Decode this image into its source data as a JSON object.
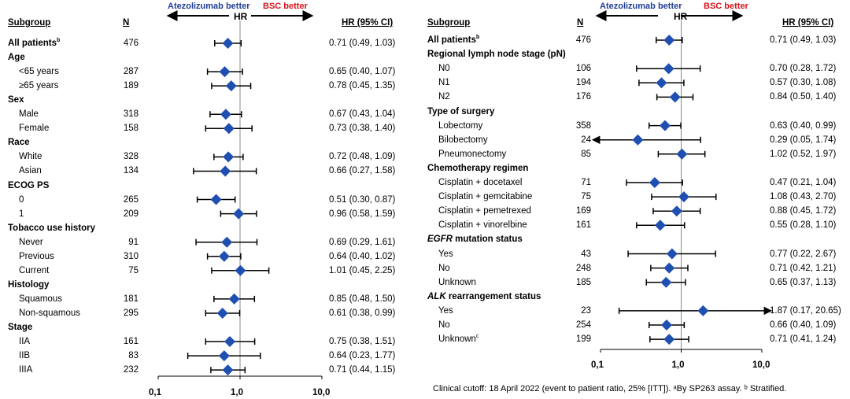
{
  "chart_data": [
    {
      "type": "forest",
      "headers": {
        "subgroup": "Subgroup",
        "n": "N",
        "hr_col": "HR (95% CI)",
        "axis_title": "HR",
        "left_label": "Atezolizumab better",
        "right_label": "BSC better"
      },
      "x_scale": "log",
      "x_ticks": [
        "0,1",
        "1,0",
        "10,0"
      ],
      "xlim": [
        0.1,
        10
      ],
      "reference_line": 1.0,
      "rows": [
        {
          "label": "All patients",
          "sup": "b",
          "section": false,
          "n": "476",
          "hr": 0.71,
          "lo": 0.49,
          "hi": 1.03,
          "ci_text": "0.71 (0.49, 1.03)"
        },
        {
          "label": "Age",
          "section": true
        },
        {
          "label": "<65 years",
          "section": false,
          "n": "287",
          "hr": 0.65,
          "lo": 0.4,
          "hi": 1.07,
          "ci_text": "0.65 (0.40, 1.07)"
        },
        {
          "label": "≥65 years",
          "section": false,
          "n": "189",
          "hr": 0.78,
          "lo": 0.45,
          "hi": 1.35,
          "ci_text": "0.78 (0.45, 1.35)"
        },
        {
          "label": "Sex",
          "section": true
        },
        {
          "label": "Male",
          "section": false,
          "n": "318",
          "hr": 0.67,
          "lo": 0.43,
          "hi": 1.04,
          "ci_text": "0.67 (0.43, 1.04)"
        },
        {
          "label": "Female",
          "section": false,
          "n": "158",
          "hr": 0.73,
          "lo": 0.38,
          "hi": 1.4,
          "ci_text": "0.73 (0.38, 1.40)"
        },
        {
          "label": "Race",
          "section": true
        },
        {
          "label": "White",
          "section": false,
          "n": "328",
          "hr": 0.72,
          "lo": 0.48,
          "hi": 1.09,
          "ci_text": "0.72 (0.48, 1.09)"
        },
        {
          "label": "Asian",
          "section": false,
          "n": "134",
          "hr": 0.66,
          "lo": 0.27,
          "hi": 1.58,
          "ci_text": "0.66 (0.27, 1.58)"
        },
        {
          "label": "ECOG PS",
          "section": true
        },
        {
          "label": "0",
          "section": false,
          "n": "265",
          "hr": 0.51,
          "lo": 0.3,
          "hi": 0.87,
          "ci_text": "0.51 (0.30, 0.87)"
        },
        {
          "label": "1",
          "section": false,
          "n": "209",
          "hr": 0.96,
          "lo": 0.58,
          "hi": 1.59,
          "ci_text": "0.96 (0.58, 1.59)"
        },
        {
          "label": "Tobacco use history",
          "section": true
        },
        {
          "label": "Never",
          "section": false,
          "n": "91",
          "hr": 0.69,
          "lo": 0.29,
          "hi": 1.61,
          "ci_text": "0.69 (0.29, 1.61)"
        },
        {
          "label": "Previous",
          "section": false,
          "n": "310",
          "hr": 0.64,
          "lo": 0.4,
          "hi": 1.02,
          "ci_text": "0.64 (0.40, 1.02)"
        },
        {
          "label": "Current",
          "section": false,
          "n": "75",
          "hr": 1.01,
          "lo": 0.45,
          "hi": 2.25,
          "ci_text": "1.01 (0.45, 2.25)"
        },
        {
          "label": "Histology",
          "section": true
        },
        {
          "label": "Squamous",
          "section": false,
          "n": "181",
          "hr": 0.85,
          "lo": 0.48,
          "hi": 1.5,
          "ci_text": "0.85 (0.48, 1.50)"
        },
        {
          "label": "Non-squamous",
          "section": false,
          "n": "295",
          "hr": 0.61,
          "lo": 0.38,
          "hi": 0.99,
          "ci_text": "0.61 (0.38, 0.99)"
        },
        {
          "label": "Stage",
          "section": true
        },
        {
          "label": "IIA",
          "section": false,
          "n": "161",
          "hr": 0.75,
          "lo": 0.38,
          "hi": 1.51,
          "ci_text": "0.75 (0.38, 1.51)"
        },
        {
          "label": "IIB",
          "section": false,
          "n": "83",
          "hr": 0.64,
          "lo": 0.23,
          "hi": 1.77,
          "ci_text": "0.64 (0.23, 1.77)"
        },
        {
          "label": "IIIA",
          "section": false,
          "n": "232",
          "hr": 0.71,
          "lo": 0.44,
          "hi": 1.15,
          "ci_text": "0.71 (0.44, 1.15)"
        }
      ]
    },
    {
      "type": "forest",
      "headers": {
        "subgroup": "Subgroup",
        "n": "N",
        "hr_col": "HR (95% CI)",
        "axis_title": "HR",
        "left_label": "Atezolizumab better",
        "right_label": "BSC better"
      },
      "x_scale": "log",
      "x_ticks": [
        "0,1",
        "1,0",
        "10,0"
      ],
      "xlim": [
        0.1,
        10
      ],
      "reference_line": 1.0,
      "rows": [
        {
          "label": "All patients",
          "sup": "b",
          "section": false,
          "n": "476",
          "hr": 0.71,
          "lo": 0.49,
          "hi": 1.03,
          "ci_text": "0.71 (0.49, 1.03)"
        },
        {
          "label": "Regional lymph node stage (pN)",
          "section": true
        },
        {
          "label": "N0",
          "section": false,
          "n": "106",
          "hr": 0.7,
          "lo": 0.28,
          "hi": 1.72,
          "ci_text": "0.70 (0.28, 1.72)"
        },
        {
          "label": "N1",
          "section": false,
          "n": "194",
          "hr": 0.57,
          "lo": 0.3,
          "hi": 1.08,
          "ci_text": "0.57 (0.30, 1.08)"
        },
        {
          "label": "N2",
          "section": false,
          "n": "176",
          "hr": 0.84,
          "lo": 0.5,
          "hi": 1.4,
          "ci_text": "0.84 (0.50, 1.40)"
        },
        {
          "label": "Type of surgery",
          "section": true
        },
        {
          "label": "Lobectomy",
          "section": false,
          "n": "358",
          "hr": 0.63,
          "lo": 0.4,
          "hi": 0.99,
          "ci_text": "0.63 (0.40, 0.99)"
        },
        {
          "label": "Bilobectomy",
          "section": false,
          "n": "24",
          "hr": 0.29,
          "lo": 0.05,
          "hi": 1.74,
          "ci_text": "0.29 (0.05, 1.74)"
        },
        {
          "label": "Pneumonectomy",
          "section": false,
          "n": "85",
          "hr": 1.02,
          "lo": 0.52,
          "hi": 1.97,
          "ci_text": "1.02 (0.52, 1.97)"
        },
        {
          "label": "Chemotherapy regimen",
          "section": true
        },
        {
          "label": "Cisplatin + docetaxel",
          "section": false,
          "n": "71",
          "hr": 0.47,
          "lo": 0.21,
          "hi": 1.04,
          "ci_text": "0.47 (0.21, 1.04)"
        },
        {
          "label": "Cisplatin + gemcitabine",
          "section": false,
          "n": "75",
          "hr": 1.08,
          "lo": 0.43,
          "hi": 2.7,
          "ci_text": "1.08 (0.43, 2.70)"
        },
        {
          "label": "Cisplatin + pemetrexed",
          "section": false,
          "n": "169",
          "hr": 0.88,
          "lo": 0.45,
          "hi": 1.72,
          "ci_text": "0.88 (0.45, 1.72)"
        },
        {
          "label": "Cisplatin + vinorelbine",
          "section": false,
          "n": "161",
          "hr": 0.55,
          "lo": 0.28,
          "hi": 1.1,
          "ci_text": "0.55 (0.28, 1.10)"
        },
        {
          "label": "EGFR",
          "label_rest": " mutation status",
          "italic_lead": true,
          "section": true
        },
        {
          "label": "Yes",
          "section": false,
          "n": "43",
          "hr": 0.77,
          "lo": 0.22,
          "hi": 2.67,
          "ci_text": "0.77 (0.22, 2.67)"
        },
        {
          "label": "No",
          "section": false,
          "n": "248",
          "hr": 0.71,
          "lo": 0.42,
          "hi": 1.21,
          "ci_text": "0.71 (0.42, 1.21)"
        },
        {
          "label": "Unknown",
          "section": false,
          "n": "185",
          "hr": 0.65,
          "lo": 0.37,
          "hi": 1.13,
          "ci_text": "0.65 (0.37, 1.13)"
        },
        {
          "label": "ALK",
          "label_rest": " rearrangement status",
          "italic_lead": true,
          "section": true
        },
        {
          "label": "Yes",
          "section": false,
          "n": "23",
          "hr": 1.87,
          "lo": 0.17,
          "hi": 20.65,
          "ci_text": "1.87 (0.17, 20.65)"
        },
        {
          "label": "No",
          "section": false,
          "n": "254",
          "hr": 0.66,
          "lo": 0.4,
          "hi": 1.09,
          "ci_text": "0.66 (0.40, 1.09)"
        },
        {
          "label": "Unknown",
          "sup": "c",
          "section": false,
          "n": "199",
          "hr": 0.71,
          "lo": 0.41,
          "hi": 1.24,
          "ci_text": "0.71 (0.41, 1.24)"
        }
      ]
    }
  ],
  "footnote": "Clinical cutoff: 18 April 2022 (event to patient ratio, 25% [ITT]). ᵃBy SP263 assay. ᵇ Stratified.",
  "colors": {
    "marker": "#1f4fb0",
    "left_label": "#1f3d99",
    "right_label": "#d4141c",
    "line": "#000000",
    "ref_line": "#888888"
  }
}
